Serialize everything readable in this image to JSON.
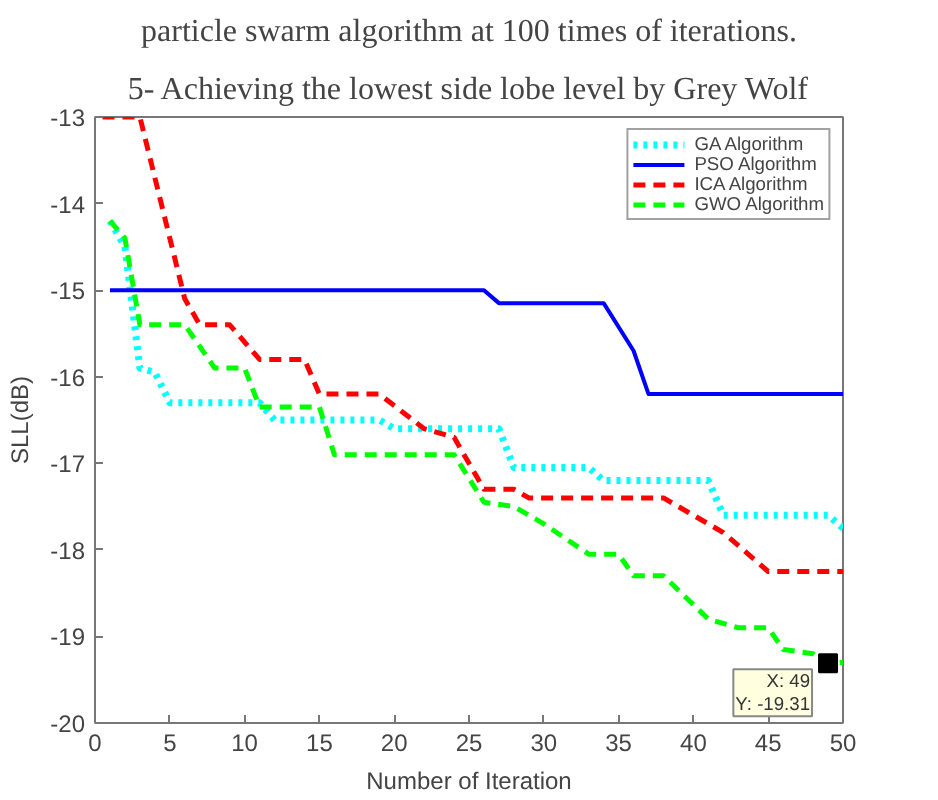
{
  "chart_data": {
    "type": "line",
    "xlabel": "Number of Iteration",
    "ylabel": "SLL(dB)",
    "annotations": [
      "particle swarm algorithm at 100 times of iterations.",
      "5- Achieving the lowest side lobe level by Grey Wolf",
      {
        "text": "X: 49\nY: -19.31",
        "x": 49,
        "y": -19.31
      }
    ],
    "xlim": [
      0,
      50
    ],
    "xticks": [
      0,
      5,
      10,
      15,
      20,
      25,
      30,
      35,
      40,
      45,
      50
    ],
    "ylim": [
      -20,
      -13
    ],
    "yticks": [
      -20,
      -19,
      -18,
      -17,
      -16,
      -15,
      -14,
      -13
    ],
    "grid": false,
    "legend": "top right",
    "series": [
      {
        "name": "GA Algorithm",
        "color": "#00ffff",
        "line_style": "dotted",
        "x": [
          1,
          2,
          3,
          4,
          5,
          11,
          12,
          19,
          20,
          27,
          28,
          33,
          34,
          41,
          42,
          49,
          50
        ],
        "values": [
          -14.2,
          -14.5,
          -15.9,
          -15.95,
          -16.3,
          -16.3,
          -16.5,
          -16.5,
          -16.6,
          -16.6,
          -17.05,
          -17.05,
          -17.2,
          -17.2,
          -17.6,
          -17.6,
          -17.75
        ]
      },
      {
        "name": "PSO Algorithm",
        "color": "#0000ff",
        "line_style": "solid",
        "x": [
          1,
          26,
          27,
          34,
          36,
          37,
          50
        ],
        "values": [
          -15.0,
          -15.0,
          -15.15,
          -15.15,
          -15.7,
          -16.2,
          -16.2
        ]
      },
      {
        "name": "ICA Algorithm",
        "color": "#ff0000",
        "line_style": "dashed",
        "x": [
          0.5,
          3,
          6,
          7,
          9,
          11,
          14,
          15,
          19,
          22,
          24,
          26,
          28,
          29,
          38,
          42,
          45,
          50
        ],
        "values": [
          -13.0,
          -13.0,
          -15.1,
          -15.4,
          -15.4,
          -15.8,
          -15.8,
          -16.2,
          -16.2,
          -16.6,
          -16.7,
          -17.3,
          -17.3,
          -17.4,
          -17.4,
          -17.8,
          -18.25,
          -18.25
        ]
      },
      {
        "name": "GWO Algorithm",
        "color": "#00ff00",
        "line_style": "dashed",
        "x": [
          1,
          2,
          3,
          6,
          8,
          10,
          11,
          15,
          16,
          24,
          26,
          28,
          30,
          33,
          35,
          36,
          38,
          41,
          43,
          45,
          46,
          48,
          49,
          50
        ],
        "values": [
          -14.2,
          -14.4,
          -15.4,
          -15.4,
          -15.9,
          -15.9,
          -16.35,
          -16.35,
          -16.9,
          -16.9,
          -17.45,
          -17.5,
          -17.7,
          -18.05,
          -18.05,
          -18.3,
          -18.3,
          -18.8,
          -18.9,
          -18.9,
          -19.15,
          -19.2,
          -19.31,
          -19.3
        ]
      }
    ]
  }
}
